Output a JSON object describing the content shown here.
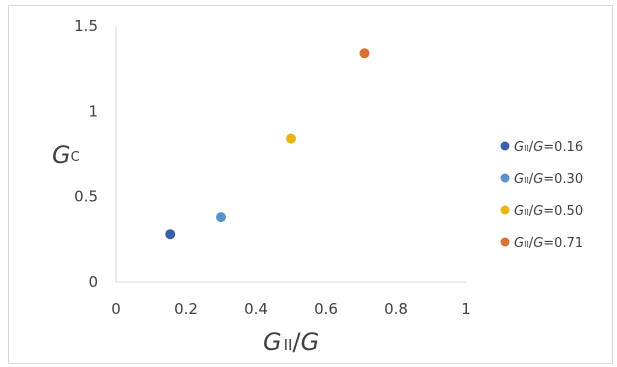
{
  "chart_data": {
    "type": "scatter",
    "xlabel": {
      "italic_main": "G",
      "sub": "II",
      "rest": "/",
      "italic_tail": "G"
    },
    "ylabel": {
      "italic_main": "G",
      "sub": "C"
    },
    "xlim": [
      0,
      1
    ],
    "ylim": [
      0,
      1.5
    ],
    "x_ticks": [
      "0",
      "0.2",
      "0.4",
      "0.6",
      "0.8",
      "1"
    ],
    "y_ticks": [
      "0",
      "0.5",
      "1",
      "1.5"
    ],
    "grid": false,
    "legend_position": "right",
    "series": [
      {
        "name": "GII/G=0.16",
        "color": "#3a5fa8",
        "x": 0.155,
        "y": 0.28
      },
      {
        "name": "GII/G=0.30",
        "color": "#5b92cc",
        "x": 0.3,
        "y": 0.38
      },
      {
        "name": "GII/G=0.50",
        "color": "#eab513",
        "x": 0.5,
        "y": 0.84
      },
      {
        "name": "GII/G=0.71",
        "color": "#d87234",
        "x": 0.71,
        "y": 1.34
      }
    ],
    "legend_labels": [
      {
        "g1": "G",
        "sub": "II",
        "mid": "/",
        "g2": "G",
        "tail": "=0.16"
      },
      {
        "g1": "G",
        "sub": "II",
        "mid": "/",
        "g2": "G",
        "tail": "=0.30"
      },
      {
        "g1": "G",
        "sub": "II",
        "mid": "/",
        "g2": "G",
        "tail": "=0.50"
      },
      {
        "g1": "G",
        "sub": "II",
        "mid": "/",
        "g2": "G",
        "tail": "=0.71"
      }
    ]
  }
}
